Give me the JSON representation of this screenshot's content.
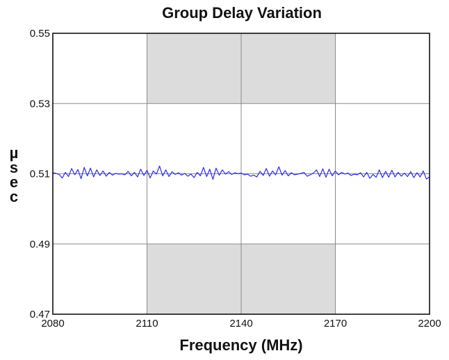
{
  "chart_data": {
    "type": "line",
    "title": "Group Delay Variation",
    "xlabel": "Frequency (MHz)",
    "ylabel": "µsec",
    "xlim": [
      2080,
      2200
    ],
    "ylim": [
      0.47,
      0.55
    ],
    "xticks": [
      2080,
      2110,
      2140,
      2170,
      2200
    ],
    "xtick_labels": [
      "2080",
      "2110",
      "2140",
      "2170",
      "2200"
    ],
    "yticks": [
      0.47,
      0.49,
      0.51,
      0.53,
      0.55
    ],
    "ytick_labels": [
      "0.47",
      "0.49",
      "0.51",
      "0.53",
      "0.55"
    ],
    "grid": true,
    "shaded_regions": [
      {
        "x": [
          2110,
          2170
        ],
        "y": [
          0.53,
          0.55
        ]
      },
      {
        "x": [
          2110,
          2170
        ],
        "y": [
          0.47,
          0.49
        ]
      }
    ],
    "series": [
      {
        "color": "#2a2af0",
        "x": [
          2080,
          2081,
          2082,
          2083,
          2084,
          2085,
          2086,
          2087,
          2088,
          2089,
          2090,
          2091,
          2092,
          2093,
          2094,
          2095,
          2096,
          2097,
          2098,
          2099,
          2100,
          2101,
          2102,
          2103,
          2104,
          2105,
          2106,
          2107,
          2108,
          2109,
          2110,
          2111,
          2112,
          2113,
          2114,
          2115,
          2116,
          2117,
          2118,
          2119,
          2120,
          2121,
          2122,
          2123,
          2124,
          2125,
          2126,
          2127,
          2128,
          2129,
          2130,
          2131,
          2132,
          2133,
          2134,
          2135,
          2136,
          2137,
          2138,
          2139,
          2140,
          2141,
          2142,
          2143,
          2144,
          2145,
          2146,
          2147,
          2148,
          2149,
          2150,
          2151,
          2152,
          2153,
          2154,
          2155,
          2156,
          2157,
          2158,
          2159,
          2160,
          2161,
          2162,
          2163,
          2164,
          2165,
          2166,
          2167,
          2168,
          2169,
          2170,
          2171,
          2172,
          2173,
          2174,
          2175,
          2176,
          2177,
          2178,
          2179,
          2180,
          2181,
          2182,
          2183,
          2184,
          2185,
          2186,
          2187,
          2188,
          2189,
          2190,
          2191,
          2192,
          2193,
          2194,
          2195,
          2196,
          2197,
          2198,
          2199,
          2200
        ],
        "y": [
          0.5103,
          0.5101,
          0.5098,
          0.5088,
          0.5104,
          0.5092,
          0.5115,
          0.5097,
          0.5112,
          0.5086,
          0.5118,
          0.5094,
          0.5116,
          0.5091,
          0.5111,
          0.5095,
          0.5108,
          0.5093,
          0.5104,
          0.5096,
          0.5101,
          0.5099,
          0.51,
          0.5097,
          0.5107,
          0.5094,
          0.5104,
          0.5091,
          0.5113,
          0.5095,
          0.511,
          0.5088,
          0.5108,
          0.5099,
          0.5122,
          0.5094,
          0.5111,
          0.5092,
          0.5106,
          0.5098,
          0.5103,
          0.5096,
          0.5101,
          0.5093,
          0.5099,
          0.5089,
          0.5104,
          0.5094,
          0.5118,
          0.5092,
          0.5113,
          0.5084,
          0.5116,
          0.5096,
          0.5111,
          0.5099,
          0.5106,
          0.5098,
          0.5103,
          0.51,
          0.5102,
          0.5097,
          0.5099,
          0.5093,
          0.5096,
          0.5091,
          0.5107,
          0.5095,
          0.5115,
          0.5093,
          0.5108,
          0.5097,
          0.512,
          0.5096,
          0.5109,
          0.5094,
          0.5103,
          0.5097,
          0.5099,
          0.5101,
          0.5104,
          0.5093,
          0.5097,
          0.5102,
          0.5111,
          0.5092,
          0.5114,
          0.509,
          0.5113,
          0.5094,
          0.5108,
          0.5097,
          0.5104,
          0.5099,
          0.5102,
          0.5095,
          0.5099,
          0.5097,
          0.5103,
          0.5091,
          0.5104,
          0.5087,
          0.5098,
          0.509,
          0.5111,
          0.5089,
          0.5107,
          0.509,
          0.511,
          0.5091,
          0.5104,
          0.5093,
          0.5102,
          0.5092,
          0.5106,
          0.5089,
          0.5103,
          0.5091,
          0.5108,
          0.5085,
          0.5091
        ]
      }
    ]
  }
}
